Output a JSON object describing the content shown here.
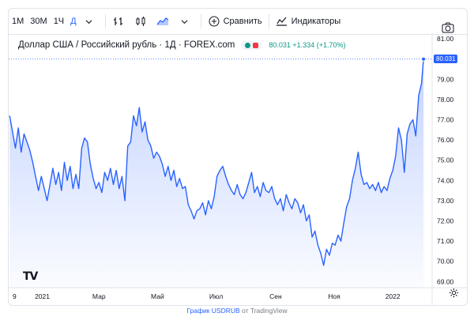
{
  "toolbar": {
    "intervals": [
      {
        "label": "1М",
        "active": false
      },
      {
        "label": "30М",
        "active": false
      },
      {
        "label": "1Ч",
        "active": false
      },
      {
        "label": "Д",
        "active": true
      }
    ],
    "compare_label": "Сравнить",
    "indicators_label": "Индикаторы"
  },
  "legend": {
    "title": "Доллар США / Российский рубль · 1Д · FOREX.com",
    "quote": "80.031 +1.334 (+1.70%)"
  },
  "price_badge": "80.031",
  "logo": "TV",
  "footer": {
    "link_text": "График USDRUB",
    "suffix": " от TradingView"
  },
  "colors": {
    "line": "#2962ff",
    "fill": "#2962ff",
    "up": "#089981",
    "down": "#f23645",
    "grid": "#f0f3fa"
  },
  "chart_data": {
    "type": "area",
    "title": "Доллар США / Российский рубль · 1Д · FOREX.com",
    "xlabel": "",
    "ylabel": "",
    "y_ticks": [
      81.0,
      80.0,
      79.0,
      78.0,
      77.0,
      76.0,
      75.0,
      74.0,
      73.0,
      72.0,
      71.0,
      70.0,
      69.0
    ],
    "ylim": [
      68.7,
      81.2
    ],
    "x_range": [
      "2020-11-27",
      "2022-02-11"
    ],
    "x_ticks": [
      {
        "label": "9",
        "date": "2020-12-01"
      },
      {
        "label": "2021",
        "date": "2021-01-01"
      },
      {
        "label": "Мар",
        "date": "2021-03-01"
      },
      {
        "label": "Май",
        "date": "2021-05-01"
      },
      {
        "label": "Июл",
        "date": "2021-07-01"
      },
      {
        "label": "Сен",
        "date": "2021-09-01"
      },
      {
        "label": "Ноя",
        "date": "2021-11-01"
      },
      {
        "label": "2022",
        "date": "2022-01-01"
      }
    ],
    "grid": false,
    "series": [
      {
        "values": [
          [
            "2020-11-28",
            77.2
          ],
          [
            "2020-12-01",
            76.4
          ],
          [
            "2020-12-04",
            75.6
          ],
          [
            "2020-12-07",
            76.6
          ],
          [
            "2020-12-10",
            75.4
          ],
          [
            "2020-12-13",
            76.3
          ],
          [
            "2020-12-16",
            75.9
          ],
          [
            "2020-12-19",
            75.5
          ],
          [
            "2020-12-22",
            74.9
          ],
          [
            "2020-12-25",
            74.2
          ],
          [
            "2020-12-28",
            73.5
          ],
          [
            "2020-12-31",
            74.2
          ],
          [
            "2021-01-03",
            73.6
          ],
          [
            "2021-01-06",
            73.0
          ],
          [
            "2021-01-09",
            73.8
          ],
          [
            "2021-01-12",
            74.6
          ],
          [
            "2021-01-15",
            73.8
          ],
          [
            "2021-01-18",
            74.4
          ],
          [
            "2021-01-21",
            73.5
          ],
          [
            "2021-01-24",
            74.9
          ],
          [
            "2021-01-27",
            74.0
          ],
          [
            "2021-01-30",
            74.7
          ],
          [
            "2021-02-02",
            73.6
          ],
          [
            "2021-02-05",
            74.3
          ],
          [
            "2021-02-08",
            73.6
          ],
          [
            "2021-02-11",
            75.6
          ],
          [
            "2021-02-14",
            76.1
          ],
          [
            "2021-02-17",
            75.9
          ],
          [
            "2021-02-20",
            74.8
          ],
          [
            "2021-02-23",
            74.1
          ],
          [
            "2021-02-26",
            73.6
          ],
          [
            "2021-03-01",
            73.9
          ],
          [
            "2021-03-04",
            73.4
          ],
          [
            "2021-03-07",
            74.4
          ],
          [
            "2021-03-10",
            74.0
          ],
          [
            "2021-03-13",
            74.6
          ],
          [
            "2021-03-16",
            73.8
          ],
          [
            "2021-03-19",
            74.5
          ],
          [
            "2021-03-22",
            73.6
          ],
          [
            "2021-03-25",
            74.2
          ],
          [
            "2021-03-28",
            73.0
          ],
          [
            "2021-03-31",
            75.7
          ],
          [
            "2021-04-03",
            75.9
          ],
          [
            "2021-04-06",
            77.2
          ],
          [
            "2021-04-09",
            76.7
          ],
          [
            "2021-04-12",
            77.6
          ],
          [
            "2021-04-15",
            76.4
          ],
          [
            "2021-04-18",
            76.9
          ],
          [
            "2021-04-21",
            76.0
          ],
          [
            "2021-04-24",
            75.7
          ],
          [
            "2021-04-27",
            75.1
          ],
          [
            "2021-04-30",
            75.4
          ],
          [
            "2021-05-03",
            75.2
          ],
          [
            "2021-05-06",
            74.8
          ],
          [
            "2021-05-09",
            74.2
          ],
          [
            "2021-05-12",
            74.7
          ],
          [
            "2021-05-15",
            74.0
          ],
          [
            "2021-05-18",
            74.5
          ],
          [
            "2021-05-21",
            73.7
          ],
          [
            "2021-05-24",
            74.1
          ],
          [
            "2021-05-27",
            73.6
          ],
          [
            "2021-05-30",
            73.7
          ],
          [
            "2021-06-02",
            72.8
          ],
          [
            "2021-06-05",
            72.5
          ],
          [
            "2021-06-08",
            72.1
          ],
          [
            "2021-06-11",
            72.5
          ],
          [
            "2021-06-14",
            72.6
          ],
          [
            "2021-06-17",
            72.9
          ],
          [
            "2021-06-20",
            72.3
          ],
          [
            "2021-06-23",
            73.0
          ],
          [
            "2021-06-26",
            72.6
          ],
          [
            "2021-06-29",
            73.2
          ],
          [
            "2021-07-02",
            74.2
          ],
          [
            "2021-07-05",
            74.5
          ],
          [
            "2021-07-08",
            74.7
          ],
          [
            "2021-07-11",
            74.2
          ],
          [
            "2021-07-14",
            73.8
          ],
          [
            "2021-07-17",
            73.5
          ],
          [
            "2021-07-20",
            73.3
          ],
          [
            "2021-07-23",
            73.8
          ],
          [
            "2021-07-26",
            73.3
          ],
          [
            "2021-07-29",
            73.1
          ],
          [
            "2021-08-01",
            73.4
          ],
          [
            "2021-08-04",
            73.9
          ],
          [
            "2021-08-07",
            74.4
          ],
          [
            "2021-08-10",
            73.4
          ],
          [
            "2021-08-13",
            73.7
          ],
          [
            "2021-08-16",
            73.2
          ],
          [
            "2021-08-19",
            73.9
          ],
          [
            "2021-08-22",
            73.5
          ],
          [
            "2021-08-25",
            73.4
          ],
          [
            "2021-08-28",
            73.7
          ],
          [
            "2021-08-31",
            73.1
          ],
          [
            "2021-09-03",
            72.8
          ],
          [
            "2021-09-06",
            73.1
          ],
          [
            "2021-09-09",
            72.5
          ],
          [
            "2021-09-12",
            73.3
          ],
          [
            "2021-09-15",
            72.9
          ],
          [
            "2021-09-18",
            72.6
          ],
          [
            "2021-09-21",
            73.1
          ],
          [
            "2021-09-24",
            72.9
          ],
          [
            "2021-09-27",
            72.4
          ],
          [
            "2021-09-30",
            72.8
          ],
          [
            "2021-10-03",
            72.0
          ],
          [
            "2021-10-06",
            72.3
          ],
          [
            "2021-10-09",
            71.2
          ],
          [
            "2021-10-12",
            71.5
          ],
          [
            "2021-10-15",
            70.8
          ],
          [
            "2021-10-18",
            70.4
          ],
          [
            "2021-10-21",
            69.8
          ],
          [
            "2021-10-24",
            70.6
          ],
          [
            "2021-10-27",
            70.3
          ],
          [
            "2021-10-30",
            70.9
          ],
          [
            "2021-11-02",
            70.8
          ],
          [
            "2021-11-05",
            71.3
          ],
          [
            "2021-11-08",
            71.0
          ],
          [
            "2021-11-11",
            71.9
          ],
          [
            "2021-11-14",
            72.7
          ],
          [
            "2021-11-17",
            73.1
          ],
          [
            "2021-11-20",
            74.0
          ],
          [
            "2021-11-23",
            74.6
          ],
          [
            "2021-11-26",
            75.4
          ],
          [
            "2021-11-29",
            74.3
          ],
          [
            "2021-12-02",
            73.8
          ],
          [
            "2021-12-05",
            73.9
          ],
          [
            "2021-12-08",
            73.6
          ],
          [
            "2021-12-11",
            73.8
          ],
          [
            "2021-12-14",
            73.5
          ],
          [
            "2021-12-17",
            73.9
          ],
          [
            "2021-12-20",
            73.4
          ],
          [
            "2021-12-23",
            73.7
          ],
          [
            "2021-12-26",
            73.5
          ],
          [
            "2021-12-29",
            74.1
          ],
          [
            "2022-01-01",
            74.5
          ],
          [
            "2022-01-04",
            75.2
          ],
          [
            "2022-01-07",
            76.6
          ],
          [
            "2022-01-10",
            76.0
          ],
          [
            "2022-01-13",
            74.4
          ],
          [
            "2022-01-16",
            76.3
          ],
          [
            "2022-01-19",
            76.8
          ],
          [
            "2022-01-22",
            77.0
          ],
          [
            "2022-01-25",
            76.2
          ],
          [
            "2022-01-28",
            78.2
          ],
          [
            "2022-01-31",
            78.8
          ],
          [
            "2022-02-02",
            80.0
          ]
        ]
      }
    ]
  }
}
